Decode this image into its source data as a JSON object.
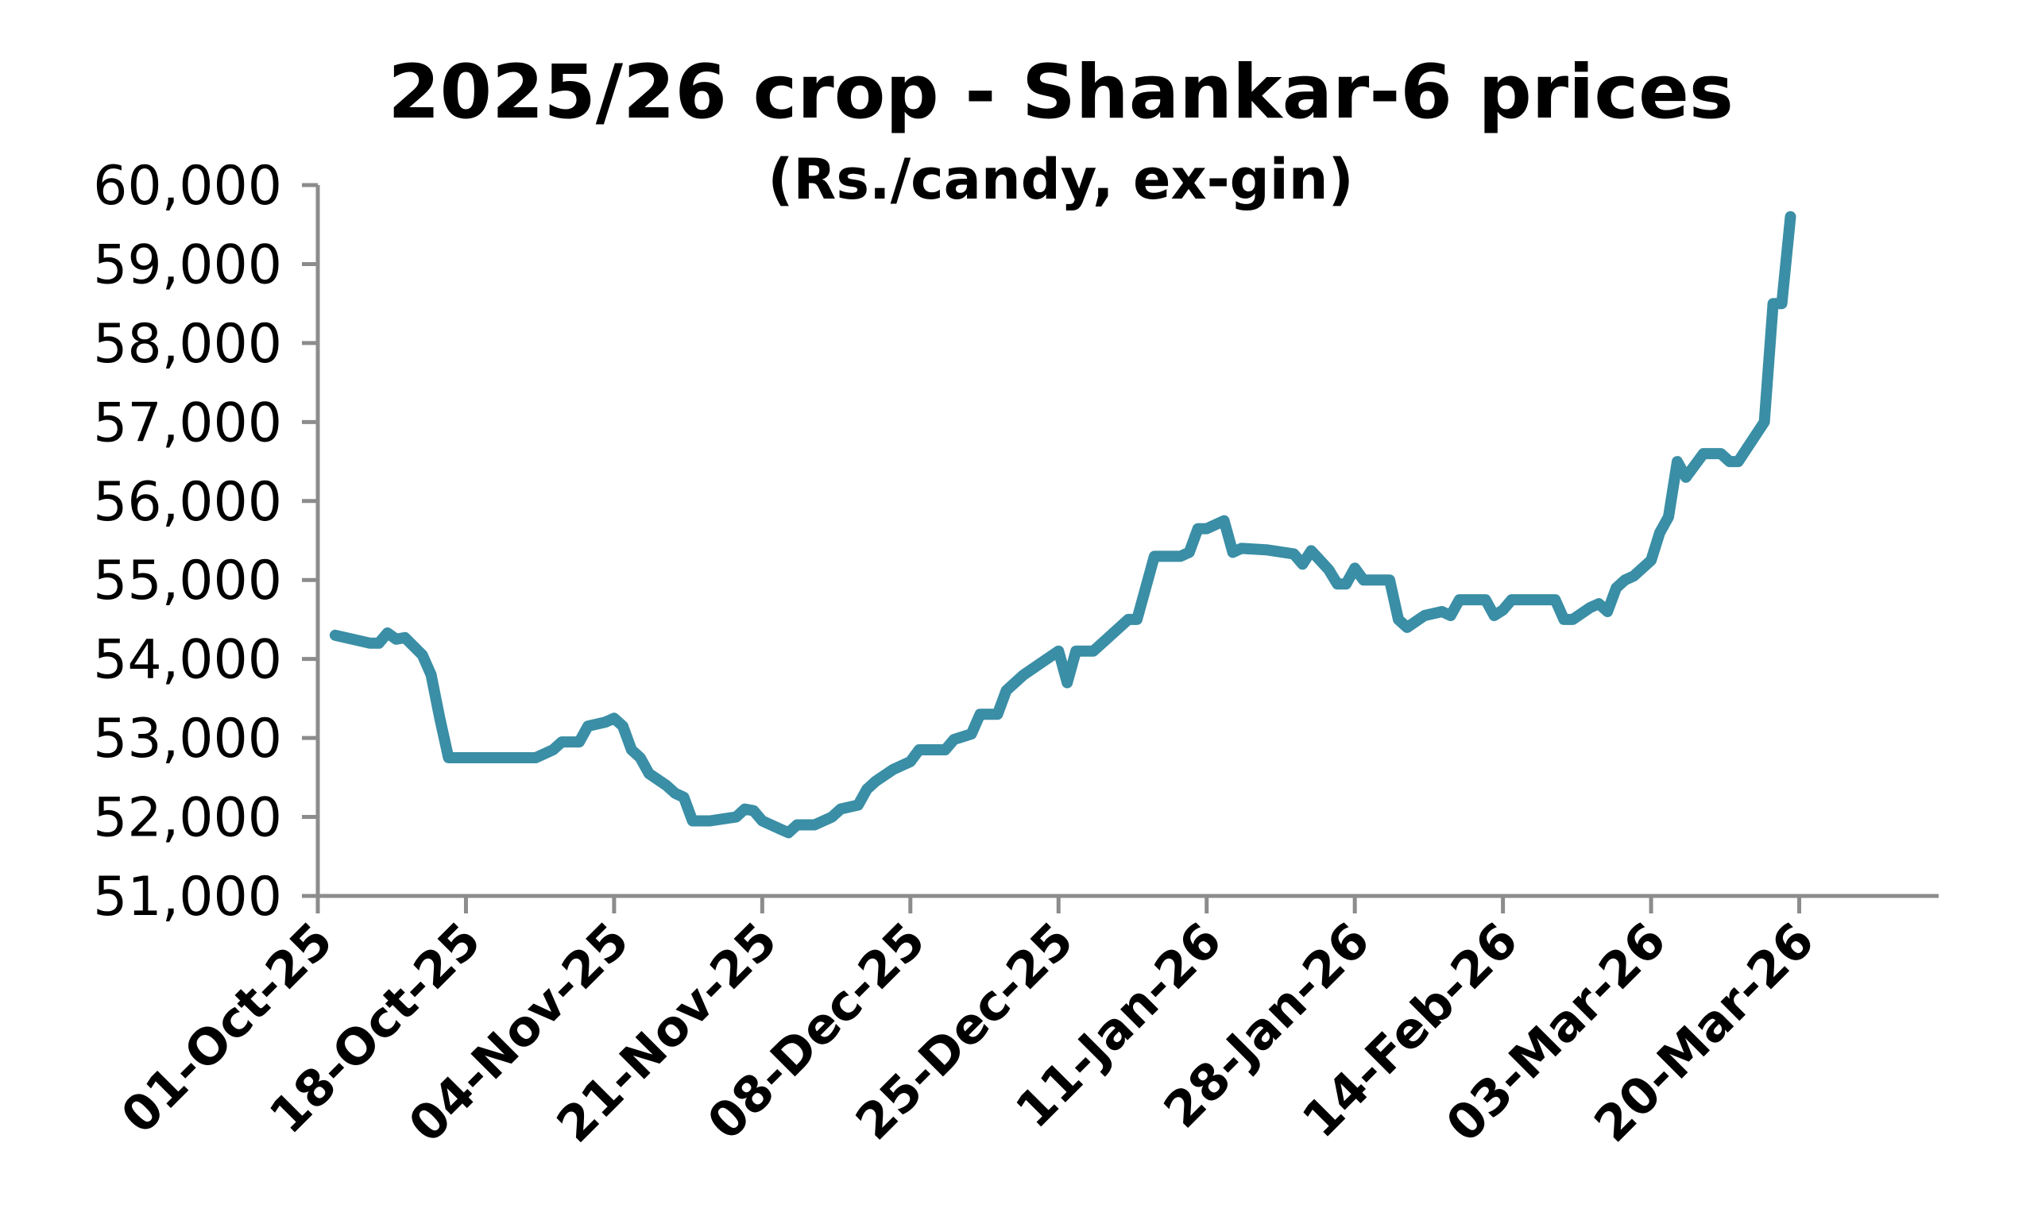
{
  "chart_data": {
    "type": "line",
    "title": "2025/26 crop - Shankar-6 prices",
    "subtitle": "(Rs./candy, ex-gin)",
    "xlabel": "",
    "ylabel": "",
    "ylim": [
      51000,
      60000
    ],
    "yticks": [
      51000,
      52000,
      53000,
      54000,
      55000,
      56000,
      57000,
      58000,
      59000,
      60000
    ],
    "ytick_labels": [
      "51,000",
      "52,000",
      "53,000",
      "54,000",
      "55,000",
      "56,000",
      "57,000",
      "58,000",
      "59,000",
      "60,000"
    ],
    "xlim": [
      "2025-10-01",
      "2026-04-05"
    ],
    "xtick_labels": [
      "01-Oct-25",
      "18-Oct-25",
      "04-Nov-25",
      "21-Nov-25",
      "08-Dec-25",
      "25-Dec-25",
      "11-Jan-26",
      "28-Jan-26",
      "14-Feb-26",
      "03-Mar-26",
      "20-Mar-26"
    ],
    "xticks": [
      "2025-10-01",
      "2025-10-18",
      "2025-11-04",
      "2025-11-21",
      "2025-12-08",
      "2025-12-25",
      "2026-01-11",
      "2026-01-28",
      "2026-02-14",
      "2026-03-03",
      "2026-03-20"
    ],
    "grid": false,
    "line_color": "#3a8ea5",
    "series": [
      {
        "name": "",
        "points": [
          [
            "2025-10-03",
            54300
          ],
          [
            "2025-10-05",
            54250
          ],
          [
            "2025-10-07",
            54200
          ],
          [
            "2025-10-08",
            54200
          ],
          [
            "2025-10-09",
            54330
          ],
          [
            "2025-10-10",
            54250
          ],
          [
            "2025-10-11",
            54270
          ],
          [
            "2025-10-13",
            54050
          ],
          [
            "2025-10-14",
            53800
          ],
          [
            "2025-10-15",
            53250
          ],
          [
            "2025-10-16",
            52750
          ],
          [
            "2025-10-18",
            52750
          ],
          [
            "2025-10-21",
            52750
          ],
          [
            "2025-10-24",
            52750
          ],
          [
            "2025-10-26",
            52750
          ],
          [
            "2025-10-28",
            52850
          ],
          [
            "2025-10-29",
            52950
          ],
          [
            "2025-10-31",
            52950
          ],
          [
            "2025-11-01",
            53150
          ],
          [
            "2025-11-03",
            53200
          ],
          [
            "2025-11-04",
            53250
          ],
          [
            "2025-11-05",
            53150
          ],
          [
            "2025-11-06",
            52850
          ],
          [
            "2025-11-07",
            52750
          ],
          [
            "2025-11-08",
            52550
          ],
          [
            "2025-11-10",
            52400
          ],
          [
            "2025-11-11",
            52300
          ],
          [
            "2025-11-12",
            52250
          ],
          [
            "2025-11-13",
            51950
          ],
          [
            "2025-11-15",
            51950
          ],
          [
            "2025-11-18",
            52000
          ],
          [
            "2025-11-19",
            52100
          ],
          [
            "2025-11-20",
            52080
          ],
          [
            "2025-11-21",
            51950
          ],
          [
            "2025-11-23",
            51850
          ],
          [
            "2025-11-24",
            51800
          ],
          [
            "2025-11-25",
            51900
          ],
          [
            "2025-11-27",
            51900
          ],
          [
            "2025-11-29",
            52000
          ],
          [
            "2025-11-30",
            52100
          ],
          [
            "2025-12-02",
            52150
          ],
          [
            "2025-12-03",
            52350
          ],
          [
            "2025-12-04",
            52450
          ],
          [
            "2025-12-06",
            52600
          ],
          [
            "2025-12-08",
            52700
          ],
          [
            "2025-12-09",
            52850
          ],
          [
            "2025-12-12",
            52850
          ],
          [
            "2025-12-13",
            52980
          ],
          [
            "2025-12-15",
            53050
          ],
          [
            "2025-12-16",
            53300
          ],
          [
            "2025-12-18",
            53300
          ],
          [
            "2025-12-19",
            53600
          ],
          [
            "2025-12-21",
            53800
          ],
          [
            "2025-12-23",
            53950
          ],
          [
            "2025-12-25",
            54100
          ],
          [
            "2025-12-26",
            53700
          ],
          [
            "2025-12-27",
            54100
          ],
          [
            "2025-12-29",
            54100
          ],
          [
            "2025-12-31",
            54300
          ],
          [
            "2026-01-02",
            54500
          ],
          [
            "2026-01-03",
            54500
          ],
          [
            "2026-01-05",
            55300
          ],
          [
            "2026-01-08",
            55300
          ],
          [
            "2026-01-09",
            55350
          ],
          [
            "2026-01-10",
            55650
          ],
          [
            "2026-01-11",
            55650
          ],
          [
            "2026-01-13",
            55750
          ],
          [
            "2026-01-14",
            55350
          ],
          [
            "2026-01-15",
            55400
          ],
          [
            "2026-01-18",
            55380
          ],
          [
            "2026-01-21",
            55330
          ],
          [
            "2026-01-22",
            55200
          ],
          [
            "2026-01-23",
            55370
          ],
          [
            "2026-01-25",
            55130
          ],
          [
            "2026-01-26",
            54950
          ],
          [
            "2026-01-27",
            54950
          ],
          [
            "2026-01-28",
            55150
          ],
          [
            "2026-01-29",
            55000
          ],
          [
            "2026-02-01",
            55000
          ],
          [
            "2026-02-02",
            54500
          ],
          [
            "2026-02-03",
            54400
          ],
          [
            "2026-02-05",
            54550
          ],
          [
            "2026-02-07",
            54600
          ],
          [
            "2026-02-08",
            54550
          ],
          [
            "2026-02-09",
            54750
          ],
          [
            "2026-02-12",
            54750
          ],
          [
            "2026-02-13",
            54550
          ],
          [
            "2026-02-14",
            54620
          ],
          [
            "2026-02-15",
            54750
          ],
          [
            "2026-02-20",
            54750
          ],
          [
            "2026-02-21",
            54500
          ],
          [
            "2026-02-22",
            54500
          ],
          [
            "2026-02-24",
            54650
          ],
          [
            "2026-02-25",
            54700
          ],
          [
            "2026-02-26",
            54600
          ],
          [
            "2026-02-27",
            54900
          ],
          [
            "2026-02-28",
            55000
          ],
          [
            "2026-03-01",
            55050
          ],
          [
            "2026-03-03",
            55250
          ],
          [
            "2026-03-04",
            55600
          ],
          [
            "2026-03-05",
            55800
          ],
          [
            "2026-03-06",
            56500
          ],
          [
            "2026-03-07",
            56300
          ],
          [
            "2026-03-09",
            56600
          ],
          [
            "2026-03-11",
            56600
          ],
          [
            "2026-03-12",
            56500
          ],
          [
            "2026-03-13",
            56500
          ],
          [
            "2026-03-16",
            57000
          ],
          [
            "2026-03-17",
            58500
          ],
          [
            "2026-03-18",
            58500
          ],
          [
            "2026-03-19",
            59600
          ]
        ]
      }
    ]
  }
}
